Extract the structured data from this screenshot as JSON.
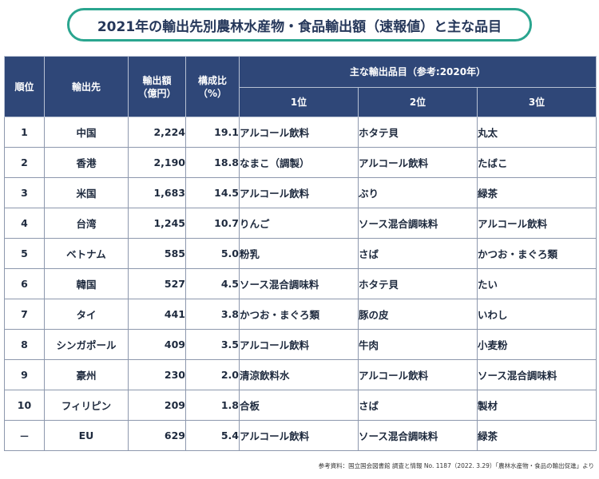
{
  "title": "2021年の輸出先別農林水産物・食品輸出額（速報値）と主な品目",
  "headers": {
    "rank": "順位",
    "destination": "輸出先",
    "amount": "輸出額（億円）",
    "ratio": "構成比（%）",
    "items_group": "主な輸出品目（参考:2020年）",
    "item1": "1位",
    "item2": "2位",
    "item3": "3位"
  },
  "rows": [
    {
      "rank": "1",
      "dest": "中国",
      "amount": "2,224",
      "ratio": "19.1",
      "i1": "アルコール飲料",
      "i2": "ホタテ貝",
      "i3": "丸太"
    },
    {
      "rank": "2",
      "dest": "香港",
      "amount": "2,190",
      "ratio": "18.8",
      "i1": "なまこ（調製）",
      "i2": "アルコール飲料",
      "i3": "たばこ"
    },
    {
      "rank": "3",
      "dest": "米国",
      "amount": "1,683",
      "ratio": "14.5",
      "i1": "アルコール飲料",
      "i2": "ぶり",
      "i3": "緑茶"
    },
    {
      "rank": "4",
      "dest": "台湾",
      "amount": "1,245",
      "ratio": "10.7",
      "i1": "りんご",
      "i2": "ソース混合調味料",
      "i3": "アルコール飲料"
    },
    {
      "rank": "5",
      "dest": "ベトナム",
      "amount": "585",
      "ratio": "5.0",
      "i1": "粉乳",
      "i2": "さば",
      "i3": "かつお・まぐろ類"
    },
    {
      "rank": "6",
      "dest": "韓国",
      "amount": "527",
      "ratio": "4.5",
      "i1": "ソース混合調味料",
      "i2": "ホタテ貝",
      "i3": "たい"
    },
    {
      "rank": "7",
      "dest": "タイ",
      "amount": "441",
      "ratio": "3.8",
      "i1": "かつお・まぐろ類",
      "i2": "豚の皮",
      "i3": "いわし"
    },
    {
      "rank": "8",
      "dest": "シンガポール",
      "amount": "409",
      "ratio": "3.5",
      "i1": "アルコール飲料",
      "i2": "牛肉",
      "i3": "小麦粉"
    },
    {
      "rank": "9",
      "dest": "豪州",
      "amount": "230",
      "ratio": "2.0",
      "i1": "清涼飲料水",
      "i2": "アルコール飲料",
      "i3": "ソース混合調味料"
    },
    {
      "rank": "10",
      "dest": "フィリピン",
      "amount": "209",
      "ratio": "1.8",
      "i1": "合板",
      "i2": "さば",
      "i3": "製材"
    },
    {
      "rank": "－",
      "dest": "EU",
      "amount": "629",
      "ratio": "5.4",
      "i1": "アルコール飲料",
      "i2": "ソース混合調味料",
      "i3": "緑茶"
    }
  ],
  "source": "参考資料：国立国会図書館 調査と情報 No. 1187（2022. 3.29）「農林水産物・食品の輸出促進」より"
}
